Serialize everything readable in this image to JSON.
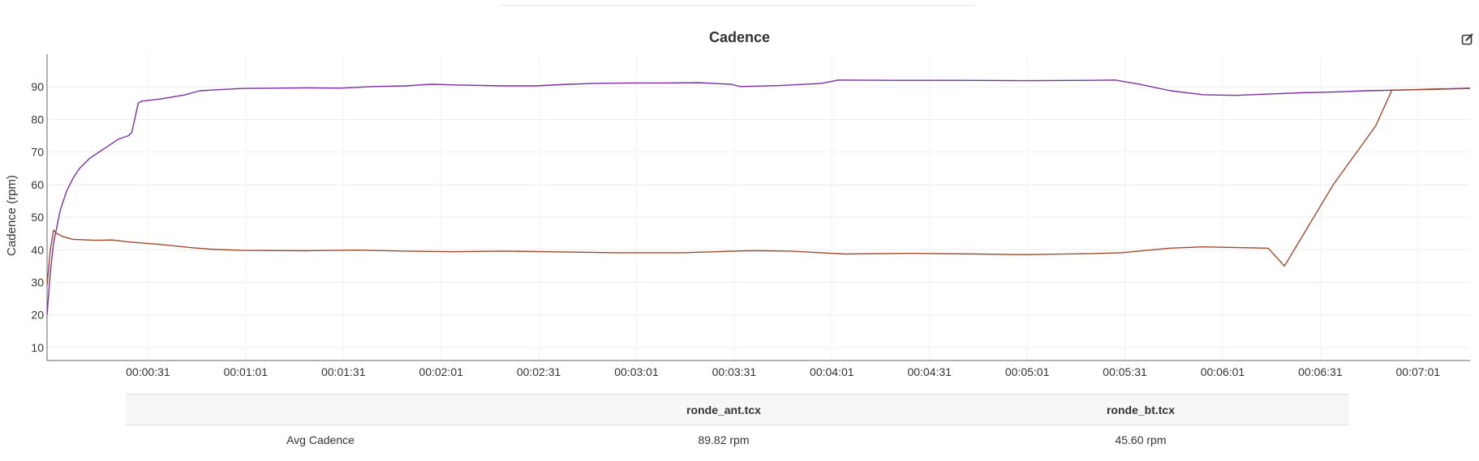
{
  "chart_data": {
    "type": "line",
    "title": "Cadence",
    "ylabel": "Cadence (rpm)",
    "xlabel": "",
    "ylim": [
      6,
      100
    ],
    "yticks": [
      10,
      20,
      30,
      40,
      50,
      60,
      70,
      80,
      90
    ],
    "xlim": [
      0,
      437
    ],
    "xtick_values": [
      31,
      61,
      91,
      121,
      151,
      181,
      211,
      241,
      271,
      301,
      331,
      361,
      391,
      421
    ],
    "xtick_labels": [
      "00:00:31",
      "00:01:01",
      "00:01:31",
      "00:02:01",
      "00:02:31",
      "00:03:01",
      "00:03:31",
      "00:04:01",
      "00:04:31",
      "00:05:01",
      "00:05:31",
      "00:06:01",
      "00:06:31",
      "00:07:01"
    ],
    "grid": true,
    "series": [
      {
        "color": "#7b2fa5",
        "points": [
          [
            0,
            20
          ],
          [
            1,
            33
          ],
          [
            2,
            42
          ],
          [
            4,
            52
          ],
          [
            6,
            58
          ],
          [
            8,
            62
          ],
          [
            10,
            65
          ],
          [
            13,
            68
          ],
          [
            16,
            70
          ],
          [
            19,
            72
          ],
          [
            22,
            74
          ],
          [
            25,
            75
          ],
          [
            26,
            76
          ],
          [
            28,
            85
          ],
          [
            29,
            85.6
          ],
          [
            35,
            86.3
          ],
          [
            42,
            87.5
          ],
          [
            47,
            88.8
          ],
          [
            52,
            89.1
          ],
          [
            60,
            89.5
          ],
          [
            70,
            89.6
          ],
          [
            80,
            89.7
          ],
          [
            90,
            89.6
          ],
          [
            100,
            90.1
          ],
          [
            110,
            90.3
          ],
          [
            118,
            90.8
          ],
          [
            125,
            90.6
          ],
          [
            140,
            90.3
          ],
          [
            150,
            90.3
          ],
          [
            160,
            90.8
          ],
          [
            170,
            91.1
          ],
          [
            180,
            91.2
          ],
          [
            190,
            91.2
          ],
          [
            200,
            91.3
          ],
          [
            210,
            90.8
          ],
          [
            213,
            90.1
          ],
          [
            225,
            90.4
          ],
          [
            235,
            90.9
          ],
          [
            238,
            91.1
          ],
          [
            243,
            92.1
          ],
          [
            260,
            92.0
          ],
          [
            280,
            92.0
          ],
          [
            300,
            91.9
          ],
          [
            320,
            92.0
          ],
          [
            328,
            92.1
          ],
          [
            335,
            90.9
          ],
          [
            345,
            88.8
          ],
          [
            355,
            87.6
          ],
          [
            365,
            87.4
          ],
          [
            375,
            87.8
          ],
          [
            385,
            88.2
          ],
          [
            395,
            88.4
          ],
          [
            405,
            88.8
          ],
          [
            415,
            89.0
          ],
          [
            425,
            89.3
          ],
          [
            437,
            89.6
          ]
        ]
      },
      {
        "color": "#a2492d",
        "points": [
          [
            0,
            29
          ],
          [
            1,
            40
          ],
          [
            2,
            46
          ],
          [
            3,
            45
          ],
          [
            5,
            44
          ],
          [
            8,
            43.2
          ],
          [
            15,
            42.9
          ],
          [
            20,
            43
          ],
          [
            25,
            42.4
          ],
          [
            35,
            41.6
          ],
          [
            45,
            40.6
          ],
          [
            50,
            40.2
          ],
          [
            60,
            39.8
          ],
          [
            80,
            39.7
          ],
          [
            95,
            39.9
          ],
          [
            110,
            39.6
          ],
          [
            125,
            39.4
          ],
          [
            140,
            39.6
          ],
          [
            160,
            39.3
          ],
          [
            175,
            39.1
          ],
          [
            195,
            39.1
          ],
          [
            215,
            39.7
          ],
          [
            220,
            39.7
          ],
          [
            228,
            39.6
          ],
          [
            245,
            38.7
          ],
          [
            265,
            38.9
          ],
          [
            285,
            38.7
          ],
          [
            300,
            38.5
          ],
          [
            320,
            38.8
          ],
          [
            330,
            39.1
          ],
          [
            345,
            40.5
          ],
          [
            355,
            40.9
          ],
          [
            375,
            40.5
          ],
          [
            380,
            35
          ],
          [
            395,
            60
          ],
          [
            408,
            78
          ],
          [
            413,
            89
          ],
          [
            425,
            89.2
          ],
          [
            437,
            89.5
          ]
        ]
      }
    ]
  },
  "summary_table": {
    "headers": [
      "",
      "ronde_ant.tcx",
      "ronde_bt.tcx"
    ],
    "rows": [
      [
        "Avg Cadence",
        "89.82 rpm",
        "45.60 rpm"
      ]
    ]
  },
  "icons": {
    "edit": "edit-icon"
  }
}
